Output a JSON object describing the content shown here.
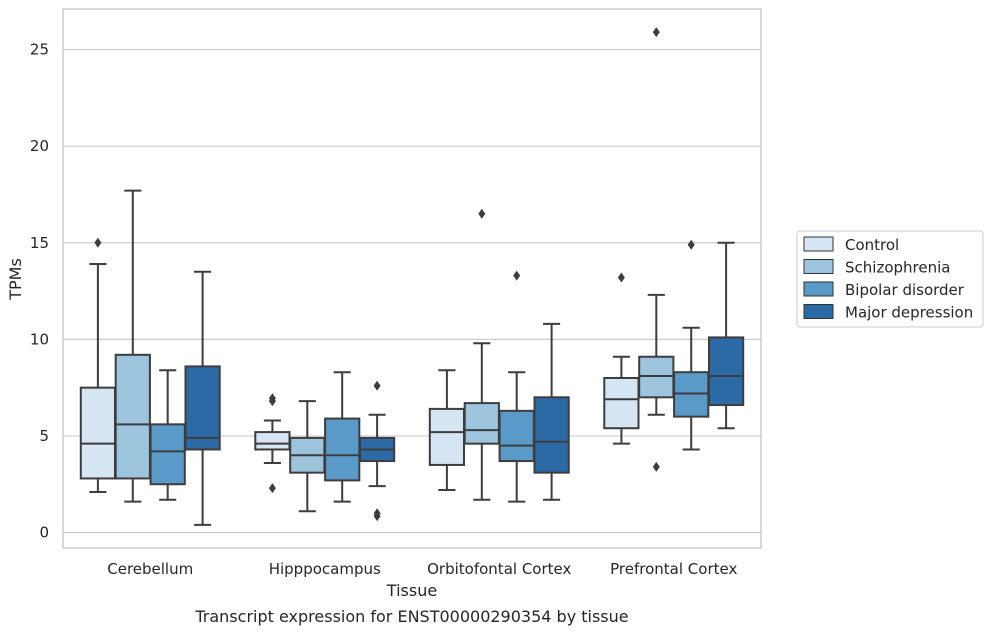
{
  "chart_data": {
    "type": "box",
    "caption": "Transcript expression for ENST00000290354 by tissue",
    "xlabel": "Tissue",
    "ylabel": "TPMs",
    "ylim": [
      -0.8,
      27.1
    ],
    "yticks": [
      0,
      5,
      10,
      15,
      20,
      25
    ],
    "grid": true,
    "legend_position": "right",
    "categories": [
      "Cerebellum",
      "Hipppocampus",
      "Orbitofontal Cortex",
      "Prefrontal Cortex"
    ],
    "series": [
      {
        "name": "Control",
        "color": "#d6e5f3",
        "boxes": [
          {
            "whislo": 2.1,
            "q1": 2.8,
            "med": 4.6,
            "q3": 7.5,
            "whishi": 13.9,
            "fliers": [
              15.0
            ]
          },
          {
            "whislo": 3.6,
            "q1": 4.3,
            "med": 4.6,
            "q3": 5.2,
            "whishi": 5.8,
            "fliers": [
              6.8,
              6.95,
              2.3
            ]
          },
          {
            "whislo": 2.2,
            "q1": 3.5,
            "med": 5.2,
            "q3": 6.4,
            "whishi": 8.4,
            "fliers": []
          },
          {
            "whislo": 4.6,
            "q1": 5.4,
            "med": 6.9,
            "q3": 8.0,
            "whishi": 9.1,
            "fliers": [
              13.2
            ]
          }
        ]
      },
      {
        "name": "Schizophrenia",
        "color": "#9cc4dd",
        "boxes": [
          {
            "whislo": 1.6,
            "q1": 2.8,
            "med": 5.6,
            "q3": 9.2,
            "whishi": 17.7,
            "fliers": []
          },
          {
            "whislo": 1.1,
            "q1": 3.1,
            "med": 4.0,
            "q3": 4.9,
            "whishi": 6.8,
            "fliers": []
          },
          {
            "whislo": 1.7,
            "q1": 4.6,
            "med": 5.3,
            "q3": 6.7,
            "whishi": 9.8,
            "fliers": [
              16.5
            ]
          },
          {
            "whislo": 6.1,
            "q1": 7.0,
            "med": 8.1,
            "q3": 9.1,
            "whishi": 12.3,
            "fliers": [
              3.4,
              25.9
            ]
          }
        ]
      },
      {
        "name": "Bipolar disorder",
        "color": "#5a9ac8",
        "boxes": [
          {
            "whislo": 1.7,
            "q1": 2.5,
            "med": 4.2,
            "q3": 5.6,
            "whishi": 8.4,
            "fliers": []
          },
          {
            "whislo": 1.6,
            "q1": 2.7,
            "med": 4.0,
            "q3": 5.9,
            "whishi": 8.3,
            "fliers": []
          },
          {
            "whislo": 1.6,
            "q1": 3.7,
            "med": 4.5,
            "q3": 6.3,
            "whishi": 8.3,
            "fliers": [
              13.3
            ]
          },
          {
            "whislo": 4.3,
            "q1": 6.0,
            "med": 7.2,
            "q3": 8.3,
            "whishi": 10.6,
            "fliers": [
              14.9
            ]
          }
        ]
      },
      {
        "name": "Major depression",
        "color": "#2c6aa6",
        "boxes": [
          {
            "whislo": 0.4,
            "q1": 4.3,
            "med": 4.9,
            "q3": 8.6,
            "whishi": 13.5,
            "fliers": []
          },
          {
            "whislo": 2.4,
            "q1": 3.7,
            "med": 4.3,
            "q3": 4.9,
            "whishi": 6.1,
            "fliers": [
              7.6,
              0.85,
              1.0
            ]
          },
          {
            "whislo": 1.7,
            "q1": 3.1,
            "med": 4.7,
            "q3": 7.0,
            "whishi": 10.8,
            "fliers": []
          },
          {
            "whislo": 5.4,
            "q1": 6.6,
            "med": 8.1,
            "q3": 10.1,
            "whishi": 15.0,
            "fliers": []
          }
        ]
      }
    ]
  }
}
